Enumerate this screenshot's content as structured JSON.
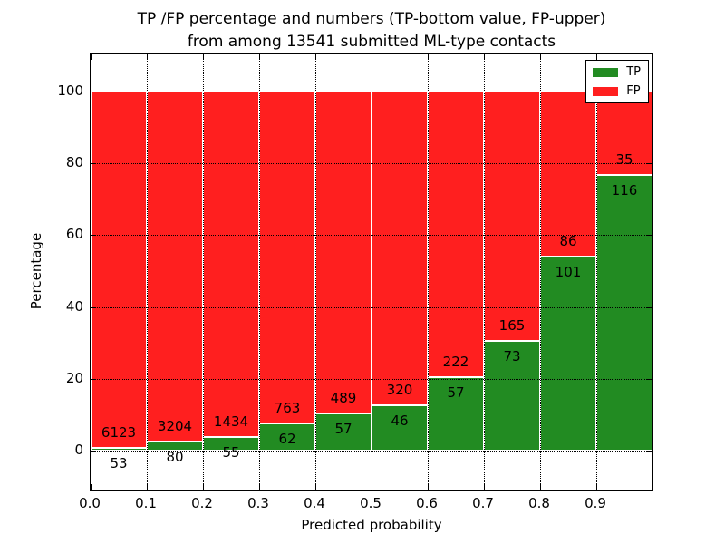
{
  "figure": {
    "title_line1": "TP /FP percentage and numbers (TP-bottom value, FP-upper)",
    "title_line2": "from among 13541 submitted ML-type contacts"
  },
  "chart_data": {
    "type": "bar",
    "stacked": true,
    "normalized": "percent",
    "title": "TP /FP percentage and numbers (TP-bottom value, FP-upper) from among 13541 submitted ML-type contacts",
    "xlabel": "Predicted probability",
    "ylabel": "Percentage",
    "total_contacts": 13541,
    "bin_starts": [
      0.0,
      0.1,
      0.2,
      0.3,
      0.4,
      0.5,
      0.6,
      0.7,
      0.8,
      0.9
    ],
    "bin_width": 0.1,
    "series": [
      {
        "name": "TP",
        "color": "#228b22",
        "values": [
          53,
          80,
          55,
          62,
          57,
          46,
          57,
          73,
          101,
          116
        ]
      },
      {
        "name": "FP",
        "color": "#ff1f1f",
        "values": [
          6123,
          3204,
          1434,
          763,
          489,
          320,
          222,
          165,
          86,
          35
        ]
      }
    ],
    "tp_percent_of_bin": [
      0.86,
      2.44,
      3.69,
      7.52,
      10.44,
      12.57,
      20.43,
      30.67,
      54.01,
      76.82
    ],
    "x_ticks": [
      "0.0",
      "0.1",
      "0.2",
      "0.3",
      "0.4",
      "0.5",
      "0.6",
      "0.7",
      "0.8",
      "0.9"
    ],
    "y_ticks": [
      0,
      20,
      40,
      60,
      80,
      100
    ],
    "xlim": [
      0.0,
      1.0
    ],
    "ylim": [
      -11,
      111
    ],
    "grid": "dotted",
    "legend": {
      "position": "upper right",
      "entries": [
        "TP",
        "FP"
      ]
    }
  },
  "colors": {
    "tp": "#228b22",
    "fp": "#ff1f1f",
    "grid": "#000000",
    "frame": "#000000",
    "background": "#ffffff",
    "bar_edge": "#ffffff"
  }
}
